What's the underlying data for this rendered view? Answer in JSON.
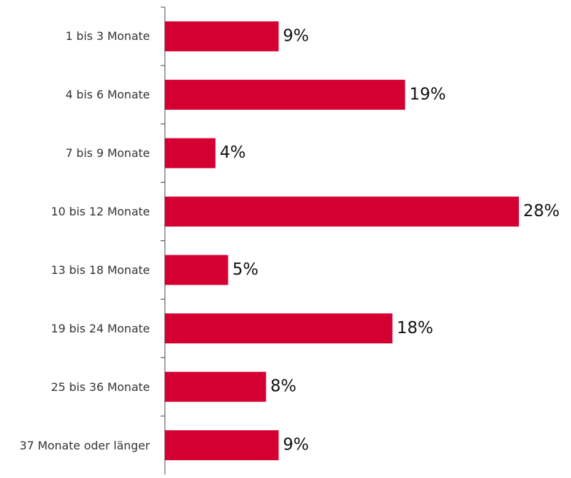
{
  "chart_data": {
    "type": "bar",
    "orientation": "horizontal",
    "categories": [
      "1 bis 3 Monate",
      "4 bis 6 Monate",
      "7 bis 9 Monate",
      "10 bis 12 Monate",
      "13 bis 18 Monate",
      "19 bis 24 Monate",
      "25 bis 36 Monate",
      "37 Monate oder länger"
    ],
    "values": [
      9,
      19,
      4,
      28,
      5,
      18,
      8,
      9
    ],
    "value_labels": [
      "9%",
      "19%",
      "4%",
      "28%",
      "5%",
      "18%",
      "8%",
      "9%"
    ],
    "color": "#d50032"
  }
}
